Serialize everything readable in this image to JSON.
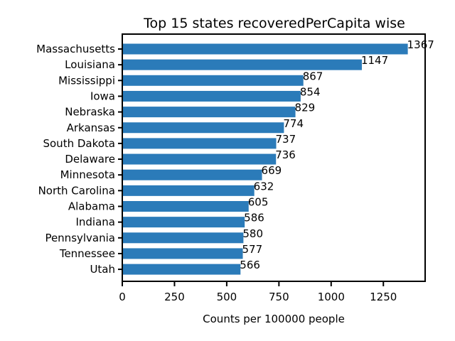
{
  "chart_data": {
    "type": "bar",
    "orientation": "horizontal",
    "title": "Top 15 states recoveredPerCapita wise",
    "xlabel": "Counts per 100000 people",
    "ylabel": "",
    "xlim": [
      0,
      1450
    ],
    "xticks": [
      0,
      250,
      500,
      750,
      1000,
      1250
    ],
    "grid": false,
    "bar_color": "#2b7bb9",
    "categories": [
      "Massachusetts",
      "Louisiana",
      "Mississippi",
      "Iowa",
      "Nebraska",
      "Arkansas",
      "South Dakota",
      "Delaware",
      "Minnesota",
      "North Carolina",
      "Alabama",
      "Indiana",
      "Pennsylvania",
      "Tennessee",
      "Utah"
    ],
    "values": [
      1367,
      1147,
      867,
      854,
      829,
      774,
      737,
      736,
      669,
      632,
      605,
      586,
      580,
      577,
      566
    ]
  }
}
